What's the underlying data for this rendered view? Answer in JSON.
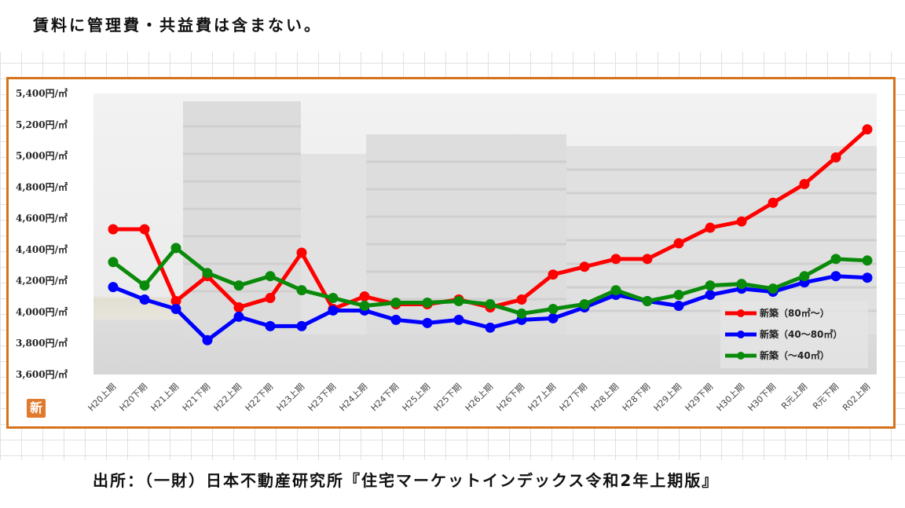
{
  "header": {
    "note": "賃料に管理費・共益費は含まない。"
  },
  "footer": {
    "source": "出所：（一財）日本不動産研究所『住宅マーケットインデックス令和2年上期版』"
  },
  "badge": {
    "label": "新"
  },
  "colors": {
    "frame": "#d4731c",
    "series": [
      "#ff0000",
      "#0000ff",
      "#0a8a0a"
    ],
    "badge": "#e07a2e"
  },
  "chart_data": {
    "type": "line",
    "ylim": [
      3600,
      5400
    ],
    "y_ticks": [
      5400,
      5200,
      5000,
      4800,
      4600,
      4400,
      4200,
      4000,
      3800,
      3600
    ],
    "y_tick_labels": [
      "5,400円/㎡",
      "5,200円/㎡",
      "5,000円/㎡",
      "4,800円/㎡",
      "4,600円/㎡",
      "4,400円/㎡",
      "4,200円/㎡",
      "4,000円/㎡",
      "3,800円/㎡",
      "3,600円/㎡"
    ],
    "categories": [
      "H20上期",
      "H20下期",
      "H21上期",
      "H21下期",
      "H22上期",
      "H22下期",
      "H23上期",
      "H23下期",
      "H24上期",
      "H24下期",
      "H25上期",
      "H25下期",
      "H26上期",
      "H26下期",
      "H27上期",
      "H27下期",
      "H28上期",
      "H28下期",
      "H29上期",
      "H29下期",
      "H30上期",
      "H30下期",
      "R元上期",
      "R元下期",
      "R02上期"
    ],
    "series": [
      {
        "name": "新築（80㎡～）",
        "values": [
          4530,
          4530,
          4070,
          4230,
          4030,
          4090,
          4380,
          4020,
          4100,
          4050,
          4050,
          4080,
          4030,
          4080,
          4240,
          4290,
          4340,
          4340,
          4440,
          4540,
          4580,
          4700,
          4820,
          4990,
          5170
        ]
      },
      {
        "name": "新築（40～80㎡）",
        "values": [
          4160,
          4080,
          4020,
          3820,
          3970,
          3910,
          3910,
          4010,
          4010,
          3950,
          3930,
          3950,
          3900,
          3950,
          3960,
          4030,
          4110,
          4070,
          4040,
          4110,
          4150,
          4130,
          4190,
          4230,
          4220
        ]
      },
      {
        "name": "新築（～40㎡）",
        "values": [
          4320,
          4170,
          4410,
          4250,
          4170,
          4230,
          4140,
          4090,
          4040,
          4060,
          4060,
          4070,
          4050,
          3990,
          4020,
          4050,
          4140,
          4070,
          4110,
          4170,
          4180,
          4150,
          4230,
          4340,
          4330
        ]
      }
    ],
    "legend_position": "bottom-right"
  }
}
